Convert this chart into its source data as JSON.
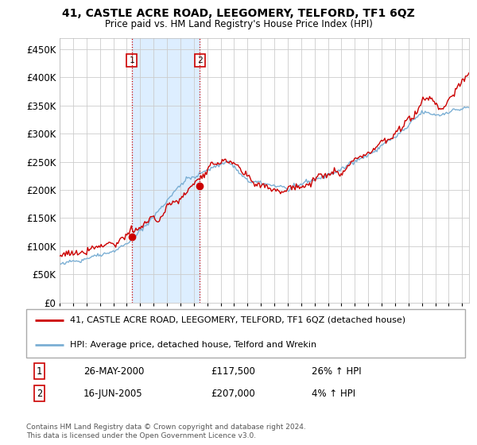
{
  "title": "41, CASTLE ACRE ROAD, LEEGOMERY, TELFORD, TF1 6QZ",
  "subtitle": "Price paid vs. HM Land Registry's House Price Index (HPI)",
  "legend_line1": "41, CASTLE ACRE ROAD, LEEGOMERY, TELFORD, TF1 6QZ (detached house)",
  "legend_line2": "HPI: Average price, detached house, Telford and Wrekin",
  "annotation1_date": "26-MAY-2000",
  "annotation1_price": "£117,500",
  "annotation1_hpi": "26% ↑ HPI",
  "annotation2_date": "16-JUN-2005",
  "annotation2_price": "£207,000",
  "annotation2_hpi": "4% ↑ HPI",
  "footer": "Contains HM Land Registry data © Crown copyright and database right 2024.\nThis data is licensed under the Open Government Licence v3.0.",
  "sale1_year": 2000.38,
  "sale1_value": 117500,
  "sale2_year": 2005.45,
  "sale2_value": 207000,
  "hpi_color": "#7bafd4",
  "price_color": "#cc0000",
  "dot_color": "#cc0000",
  "shade_color": "#ddeeff",
  "vline_color": "#cc0000",
  "grid_color": "#cccccc",
  "bg_color": "#ffffff",
  "ylim": [
    0,
    470000
  ],
  "xlim_start": 1995.0,
  "xlim_end": 2025.5
}
